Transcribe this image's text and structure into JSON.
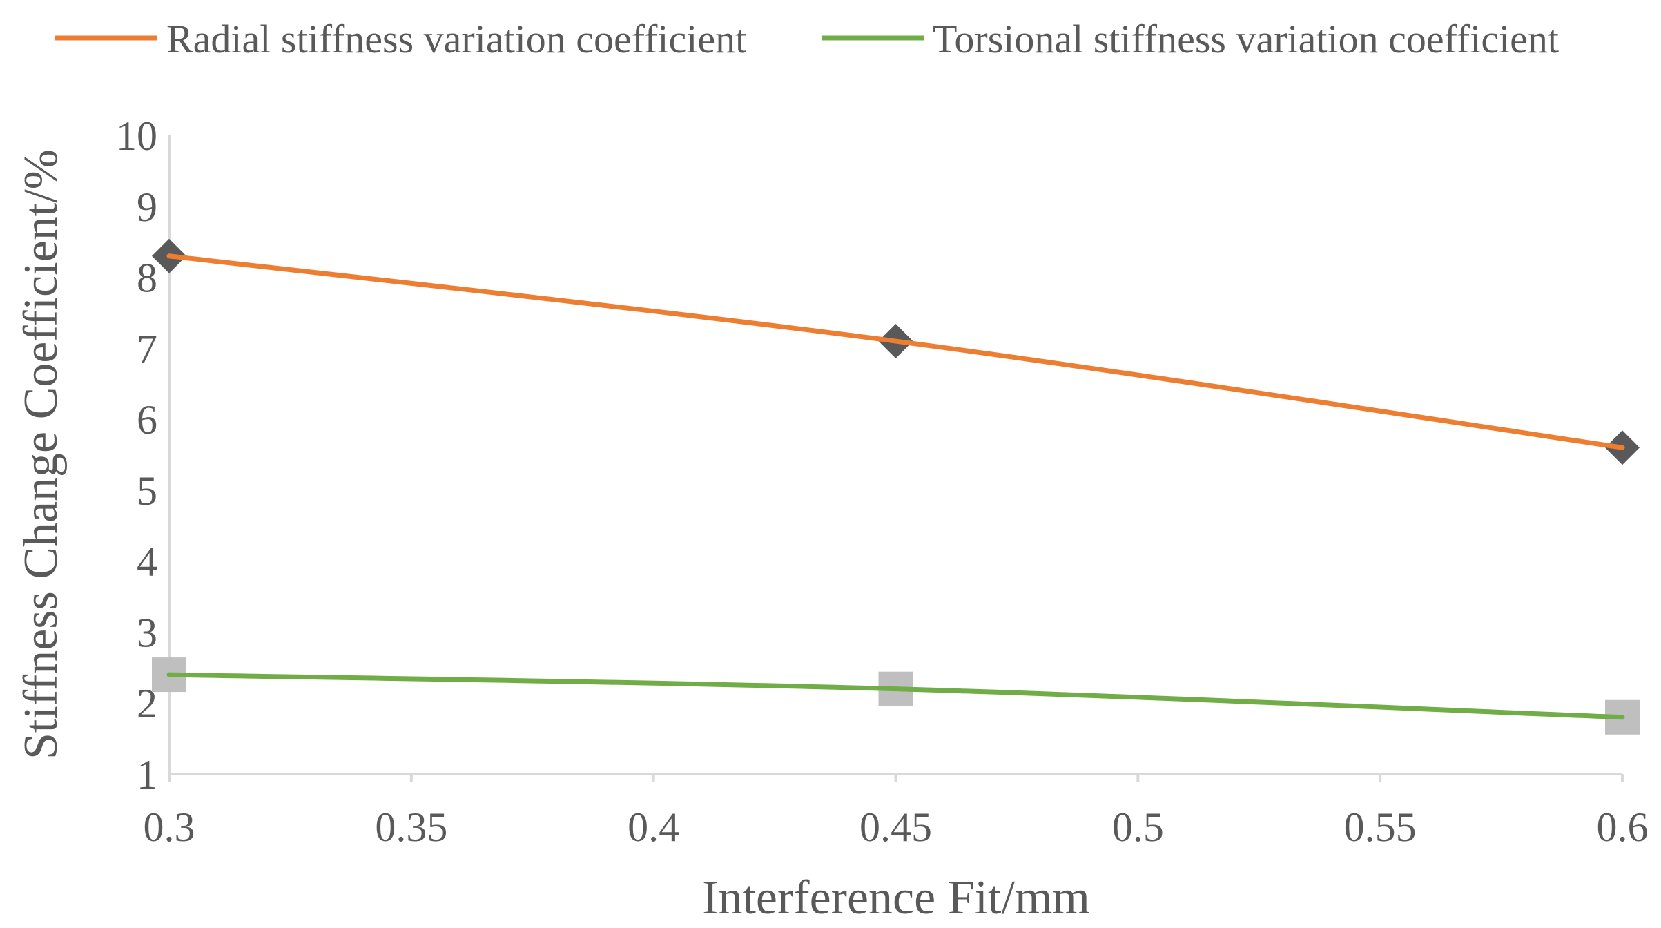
{
  "chart_data": {
    "type": "line",
    "title": "",
    "xlabel": "Interference Fit/mm",
    "ylabel": "Stiffness Change Coefficient/%",
    "x": [
      0.3,
      0.45,
      0.6
    ],
    "xlim": [
      0.3,
      0.6
    ],
    "ylim": [
      1,
      10
    ],
    "xticks": [
      "0.3",
      "0.35",
      "0.4",
      "0.45",
      "0.5",
      "0.55",
      "0.6"
    ],
    "yticks": [
      "1",
      "2",
      "3",
      "4",
      "5",
      "6",
      "7",
      "8",
      "9",
      "10"
    ],
    "grid": false,
    "legend_position": "top",
    "series": [
      {
        "name": "Radial stiffness variation coefficient",
        "values": [
          8.3,
          7.1,
          5.6
        ],
        "line_color": "#ED7D31",
        "marker": "diamond",
        "marker_color": "#595959"
      },
      {
        "name": "Torsional stiffness variation coefficient",
        "values": [
          2.4,
          2.2,
          1.8
        ],
        "line_color": "#70AD47",
        "marker": "square",
        "marker_color": "#BFBFBF"
      }
    ],
    "axis_color": "#D9D9D9",
    "text_color": "#595959"
  }
}
